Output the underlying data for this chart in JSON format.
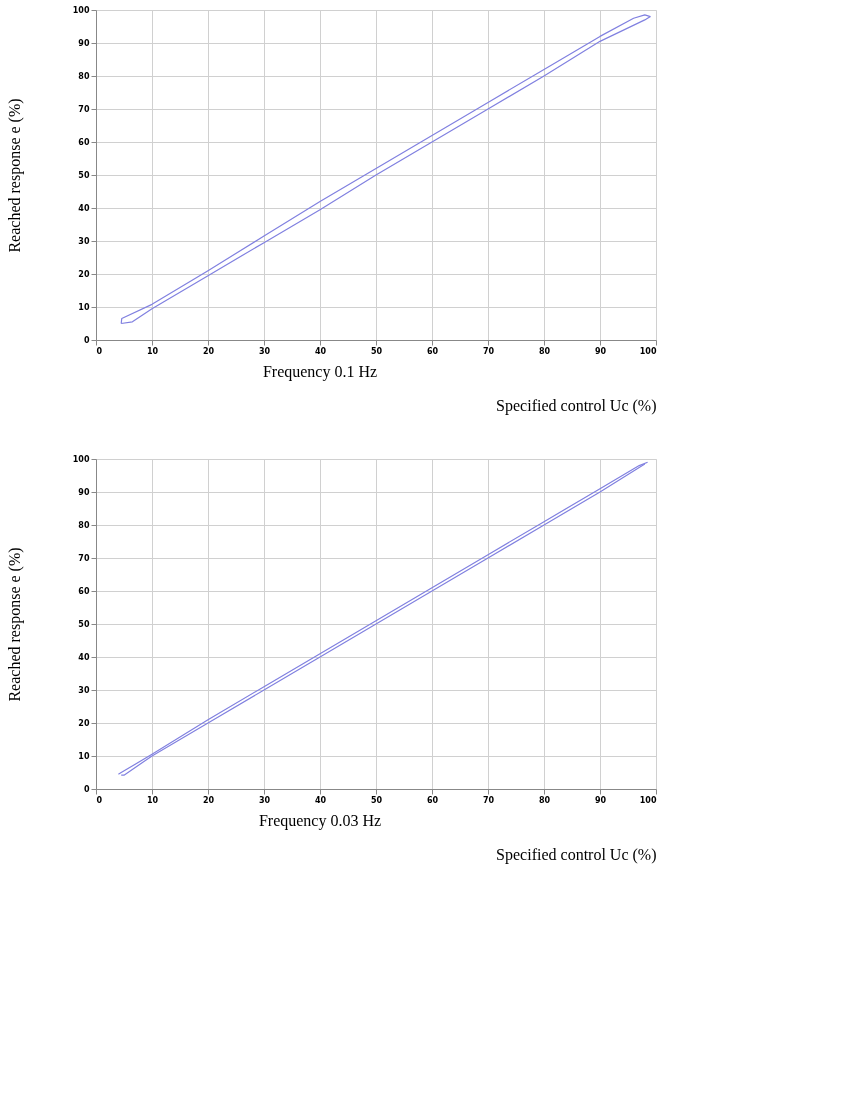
{
  "chart_data": [
    {
      "type": "line",
      "xlabel": "Specified control Uc (%)",
      "ylabel": "Reached response  e (%)",
      "annotations": [
        "Frequency 0.1 Hz"
      ],
      "xlim": [
        0,
        100
      ],
      "ylim": [
        0,
        100
      ],
      "xticks": [
        0,
        10,
        20,
        30,
        40,
        50,
        60,
        70,
        80,
        90,
        100
      ],
      "yticks": [
        0,
        10,
        20,
        30,
        40,
        50,
        60,
        70,
        80,
        90,
        100
      ],
      "grid": true,
      "series": [
        {
          "color": "#8080e0",
          "x": [
            4.5,
            4.6,
            10,
            20,
            30,
            40,
            50,
            60,
            70,
            80,
            90,
            96,
            98,
            99
          ],
          "values": [
            5,
            6.5,
            10.8,
            21,
            31.5,
            42,
            52,
            62,
            72,
            82,
            92,
            97.5,
            98.5,
            98
          ]
        },
        {
          "color": "#8080e0",
          "x": [
            4.5,
            6.5,
            10,
            20,
            30,
            40,
            50,
            60,
            70,
            80,
            90,
            98,
            99
          ],
          "values": [
            5,
            5.5,
            9.5,
            19.5,
            29.5,
            39.5,
            50,
            60,
            70,
            80,
            90.5,
            97,
            98
          ]
        }
      ]
    },
    {
      "type": "line",
      "xlabel": "Specified control Uc (%)",
      "ylabel": "Reached response  e (%)",
      "annotations": [
        "Frequency 0.03 Hz"
      ],
      "xlim": [
        0,
        100
      ],
      "ylim": [
        0,
        100
      ],
      "xticks": [
        0,
        10,
        20,
        30,
        40,
        50,
        60,
        70,
        80,
        90,
        100
      ],
      "yticks": [
        0,
        10,
        20,
        30,
        40,
        50,
        60,
        70,
        80,
        90,
        100
      ],
      "grid": true,
      "series": [
        {
          "color": "#8080e0",
          "x": [
            4,
            4.5,
            10,
            20,
            30,
            40,
            50,
            60,
            70,
            80,
            90,
            97,
            98.5
          ],
          "values": [
            4.5,
            5,
            10.5,
            21,
            31,
            41,
            51,
            61,
            71,
            81,
            91,
            98,
            99
          ]
        },
        {
          "color": "#8080e0",
          "x": [
            4.5,
            5,
            10,
            20,
            30,
            40,
            50,
            60,
            70,
            80,
            90,
            98
          ],
          "values": [
            4.2,
            4.2,
            10,
            20,
            30,
            40,
            50,
            60,
            70,
            80,
            90,
            98.5
          ]
        }
      ]
    }
  ]
}
